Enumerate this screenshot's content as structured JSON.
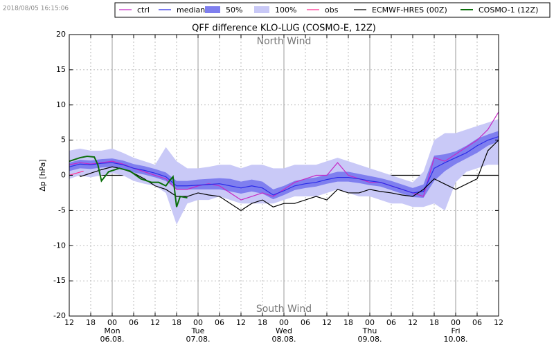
{
  "timestamp": "2018/08/05 16:15:06",
  "chart_data": {
    "type": "ensemble",
    "title": "QFF difference KLO-LUG (COSMO-E, 12Z)",
    "y_label": "Δp [hPa]",
    "annotations": [
      {
        "text": "North Wind",
        "y": 19
      },
      {
        "text": "South Wind",
        "y": -19
      }
    ],
    "xlim": [
      0,
      120
    ],
    "ylim": [
      -20,
      20
    ],
    "yticks": [
      -20,
      -15,
      -10,
      -5,
      0,
      5,
      10,
      15,
      20
    ],
    "xticks": [
      {
        "value": 0,
        "label": "12"
      },
      {
        "value": 6,
        "label": "18"
      },
      {
        "value": 12,
        "label": "00"
      },
      {
        "value": 18,
        "label": "06"
      },
      {
        "value": 24,
        "label": "12"
      },
      {
        "value": 30,
        "label": "18"
      },
      {
        "value": 36,
        "label": "00"
      },
      {
        "value": 42,
        "label": "06"
      },
      {
        "value": 48,
        "label": "12"
      },
      {
        "value": 54,
        "label": "18"
      },
      {
        "value": 60,
        "label": "00"
      },
      {
        "value": 66,
        "label": "06"
      },
      {
        "value": 72,
        "label": "12"
      },
      {
        "value": 78,
        "label": "18"
      },
      {
        "value": 84,
        "label": "00"
      },
      {
        "value": 90,
        "label": "06"
      },
      {
        "value": 96,
        "label": "12"
      },
      {
        "value": 102,
        "label": "18"
      },
      {
        "value": 108,
        "label": "00"
      },
      {
        "value": 114,
        "label": "06"
      },
      {
        "value": 120,
        "label": "12"
      }
    ],
    "day_labels": [
      {
        "value": 12,
        "weekday": "Mon",
        "date": "06.08."
      },
      {
        "value": 36,
        "weekday": "Tue",
        "date": "07.08."
      },
      {
        "value": 60,
        "weekday": "Wed",
        "date": "08.08."
      },
      {
        "value": 84,
        "weekday": "Thu",
        "date": "09.08."
      },
      {
        "value": 108,
        "weekday": "Fri",
        "date": "10.08."
      }
    ],
    "grid": true,
    "zero_line": true,
    "x": [
      0,
      3,
      6,
      9,
      12,
      15,
      18,
      21,
      24,
      27,
      30,
      33,
      36,
      39,
      42,
      45,
      48,
      51,
      54,
      57,
      60,
      63,
      66,
      69,
      72,
      75,
      78,
      81,
      84,
      87,
      90,
      93,
      96,
      99,
      102,
      105,
      108,
      111,
      114,
      117,
      120
    ],
    "series": [
      {
        "name": "ctrl",
        "kind": "line",
        "color": "#c52ac5",
        "values": [
          1.5,
          1.8,
          1.6,
          1.8,
          2.0,
          1.6,
          1.0,
          0.5,
          0.0,
          -0.5,
          -2.0,
          -2.0,
          -1.5,
          -1.2,
          -1.5,
          -2.5,
          -3.5,
          -3.0,
          -2.5,
          -3.0,
          -2.0,
          -1.0,
          -0.5,
          0.0,
          0.0,
          1.8,
          0.0,
          -0.5,
          -1.0,
          -1.0,
          -1.5,
          -2.0,
          -2.5,
          -3.0,
          2.5,
          2.0,
          3.0,
          4.0,
          5.0,
          6.5,
          9.0
        ]
      },
      {
        "name": "median",
        "kind": "line",
        "color": "#2a2ae8",
        "values": [
          1.2,
          1.6,
          1.5,
          1.7,
          1.8,
          1.5,
          1.0,
          0.7,
          0.3,
          -0.2,
          -1.5,
          -1.5,
          -1.4,
          -1.3,
          -1.2,
          -1.5,
          -1.8,
          -1.5,
          -1.8,
          -2.8,
          -2.2,
          -1.5,
          -1.2,
          -1.0,
          -0.6,
          -0.3,
          -0.3,
          -0.5,
          -0.8,
          -1.0,
          -1.5,
          -2.0,
          -2.5,
          -2.3,
          1.0,
          1.8,
          2.5,
          3.2,
          4.2,
          5.0,
          5.5
        ]
      },
      {
        "name": "50%",
        "kind": "band",
        "color": "#7f7fef",
        "low": [
          0.6,
          1.0,
          0.9,
          1.1,
          1.2,
          0.9,
          0.4,
          0.1,
          -0.3,
          -0.8,
          -2.0,
          -2.0,
          -2.0,
          -2.0,
          -2.0,
          -2.3,
          -2.6,
          -2.3,
          -2.6,
          -3.4,
          -2.8,
          -2.1,
          -1.8,
          -1.6,
          -1.2,
          -0.9,
          -0.9,
          -1.1,
          -1.4,
          -1.6,
          -2.1,
          -2.6,
          -3.1,
          -3.2,
          -0.8,
          0.6,
          1.6,
          2.4,
          3.2,
          4.2,
          4.8
        ],
        "high": [
          1.8,
          2.2,
          2.1,
          2.3,
          2.4,
          2.1,
          1.6,
          1.3,
          0.9,
          0.4,
          -0.8,
          -0.8,
          -0.6,
          -0.5,
          -0.4,
          -0.5,
          -0.9,
          -0.6,
          -0.9,
          -2.0,
          -1.5,
          -0.8,
          -0.5,
          -0.3,
          0.1,
          0.5,
          0.5,
          0.2,
          -0.1,
          -0.4,
          -0.8,
          -1.3,
          -1.8,
          -1.3,
          2.8,
          3.0,
          3.4,
          4.2,
          5.2,
          5.8,
          6.3
        ]
      },
      {
        "name": "100%",
        "kind": "band",
        "color": "#c9c9f7",
        "low": [
          -0.5,
          0.0,
          -0.3,
          0.0,
          0.3,
          0.0,
          -0.8,
          -1.2,
          -1.5,
          -2.5,
          -7.0,
          -4.0,
          -3.5,
          -3.5,
          -3.0,
          -3.5,
          -4.0,
          -4.0,
          -4.0,
          -4.0,
          -3.5,
          -3.0,
          -3.0,
          -3.0,
          -2.5,
          -2.0,
          -2.5,
          -3.0,
          -3.0,
          -3.5,
          -4.0,
          -4.0,
          -4.5,
          -4.5,
          -4.0,
          -5.0,
          -1.0,
          0.5,
          1.0,
          1.5,
          1.5
        ],
        "high": [
          3.5,
          3.8,
          3.5,
          3.5,
          3.8,
          3.2,
          2.5,
          2.0,
          1.5,
          4.0,
          2.0,
          1.0,
          1.0,
          1.2,
          1.5,
          1.5,
          1.0,
          1.5,
          1.5,
          1.0,
          1.0,
          1.5,
          1.5,
          1.5,
          2.0,
          2.5,
          2.0,
          1.5,
          1.0,
          0.5,
          0.0,
          -0.5,
          -1.0,
          0.5,
          5.0,
          6.0,
          6.0,
          6.5,
          7.0,
          7.5,
          8.0
        ]
      },
      {
        "name": "obs",
        "kind": "line",
        "color": "#ff2f8f",
        "x": [
          0,
          2,
          4
        ],
        "values": [
          0.0,
          0.3,
          0.6
        ]
      },
      {
        "name": "ECMWF-HRES (00Z)",
        "kind": "line",
        "color": "#000000",
        "x": [
          3,
          6,
          9,
          12,
          15,
          18,
          21,
          24,
          27,
          30,
          33,
          36,
          39,
          42,
          45,
          48,
          51,
          54,
          57,
          60,
          63,
          66,
          69,
          72,
          75,
          78,
          81,
          84,
          87,
          90,
          93,
          96,
          99,
          102,
          108,
          114,
          117,
          120
        ],
        "values": [
          -0.2,
          0.3,
          0.8,
          1.2,
          0.9,
          0.3,
          -0.5,
          -1.5,
          -2.0,
          -3.0,
          -3.0,
          -2.5,
          -2.8,
          -3.0,
          -4.0,
          -5.0,
          -4.0,
          -3.5,
          -4.5,
          -4.0,
          -4.0,
          -3.5,
          -3.0,
          -3.5,
          -2.0,
          -2.5,
          -2.5,
          -2.0,
          -2.3,
          -2.5,
          -2.8,
          -3.0,
          -2.0,
          -0.5,
          -2.0,
          -0.5,
          3.5,
          5.0
        ]
      },
      {
        "name": "COSMO-1 (12Z)",
        "kind": "line",
        "color": "#0a6e0a",
        "x": [
          0,
          3,
          5,
          7,
          8,
          9,
          11,
          14,
          17,
          20,
          23,
          25,
          27,
          28,
          29,
          30,
          31,
          33
        ],
        "values": [
          2.0,
          2.5,
          2.7,
          2.6,
          1.5,
          -0.8,
          0.5,
          1.0,
          0.6,
          -0.5,
          -1.0,
          -1.0,
          -1.5,
          -0.8,
          -0.2,
          -4.5,
          -3.0,
          -3.2
        ]
      }
    ]
  }
}
